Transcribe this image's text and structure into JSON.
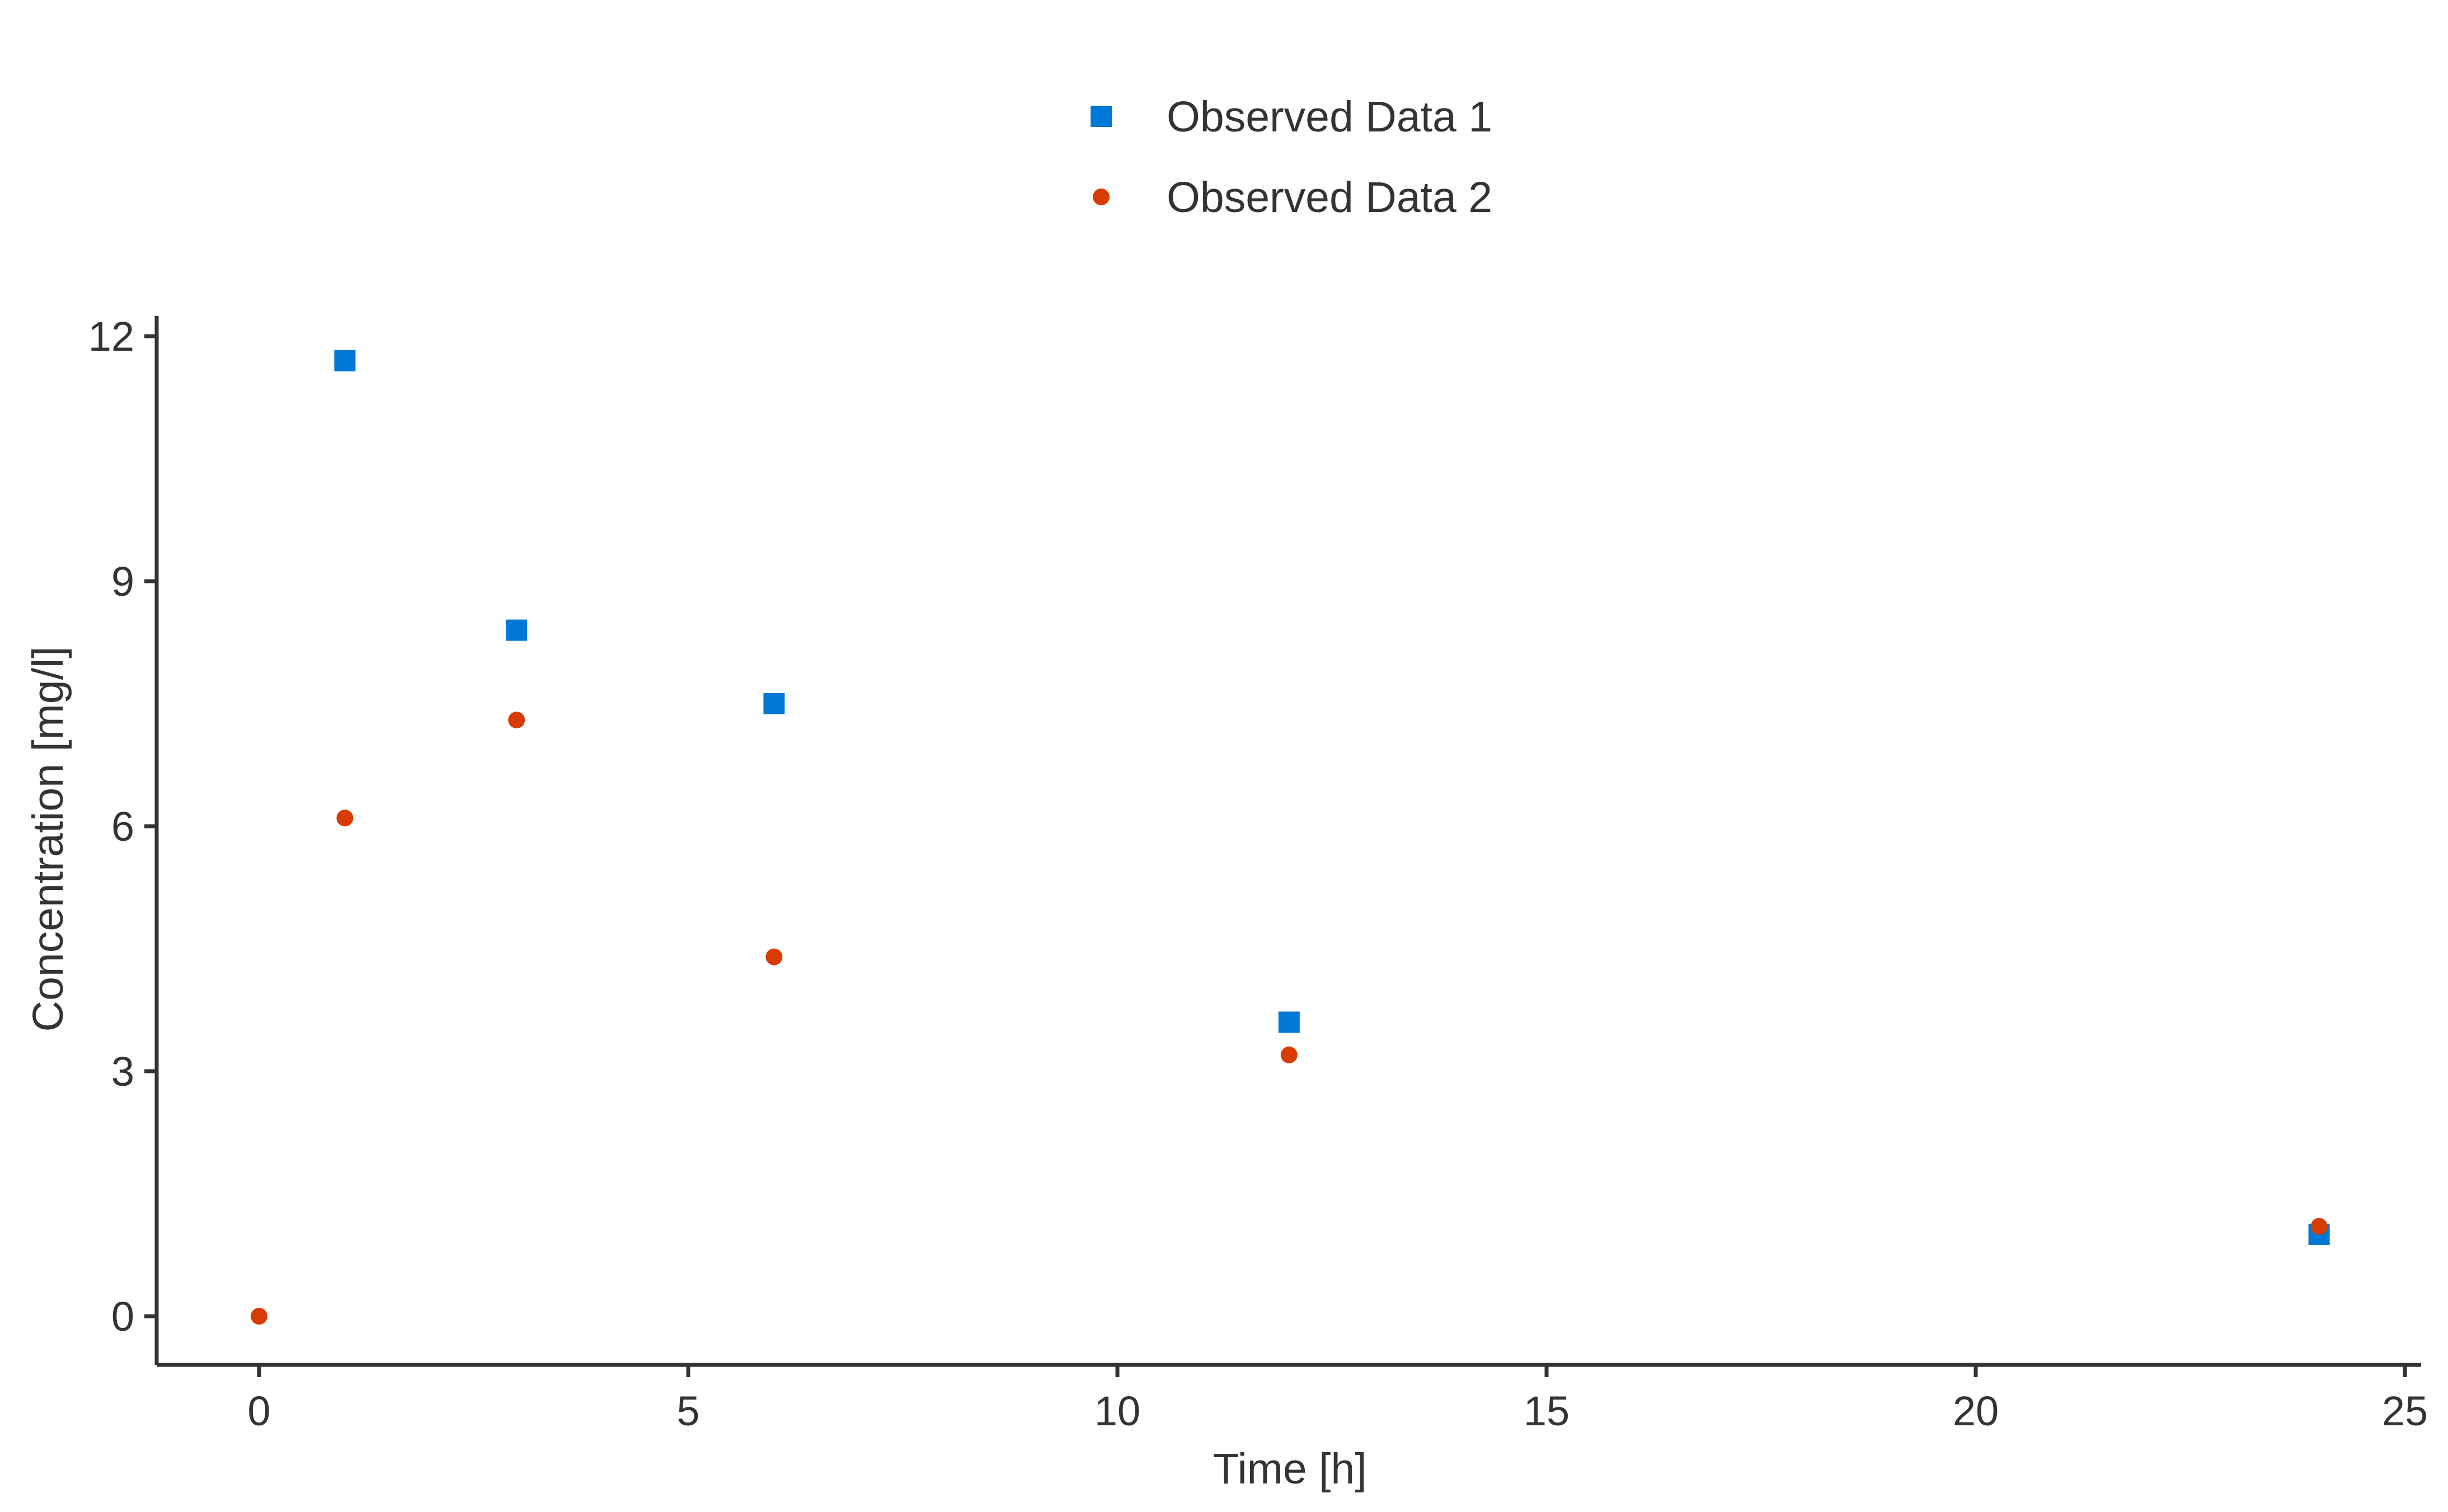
{
  "chart_data": {
    "type": "scatter",
    "title": "",
    "xlabel": "Time [h]",
    "ylabel": "Concentration [mg/l]",
    "xlim": [
      -1.2,
      25.2
    ],
    "ylim": [
      -0.6,
      12.25
    ],
    "xticks": [
      0,
      5,
      10,
      15,
      20,
      25
    ],
    "yticks": [
      0,
      3,
      6,
      9,
      12
    ],
    "grid": false,
    "legend_position": "top-center",
    "series": [
      {
        "name": "Observed Data 1",
        "marker": "square",
        "color": "#0078D7",
        "x": [
          1,
          3,
          6,
          12,
          24
        ],
        "y": [
          11.7,
          8.4,
          7.5,
          3.6,
          1.0
        ]
      },
      {
        "name": "Observed Data 2",
        "marker": "circle",
        "color": "#D83B01",
        "x": [
          0,
          1,
          3,
          6,
          12,
          24
        ],
        "y": [
          0.0,
          6.1,
          7.3,
          4.4,
          3.2,
          1.1
        ]
      }
    ]
  }
}
